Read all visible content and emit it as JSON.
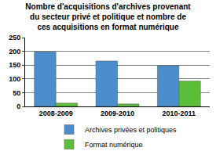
{
  "chart_data": {
    "type": "bar",
    "title": "Nombre d'acquisitions d'archives provenant\ndu secteur privé et politique et nombre de\nces acquisitions en format numérique",
    "categories": [
      "2008-2009",
      "2009-2010",
      "2010-2011"
    ],
    "series": [
      {
        "name": "Archives privées et politiques",
        "color": "#4a8fcb",
        "values": [
          198,
          165,
          148
        ]
      },
      {
        "name": "Format numérique",
        "color": "#5cbf3a",
        "values": [
          12,
          9,
          92
        ]
      }
    ],
    "ylim": [
      0,
      250
    ],
    "yticks": [
      0,
      50,
      100,
      150,
      200,
      250
    ],
    "grid": true,
    "legend": "bottom"
  }
}
